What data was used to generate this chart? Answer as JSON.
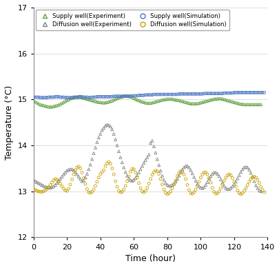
{
  "title": "",
  "xlabel": "Time (hour)",
  "ylabel": "Temperature (°C)",
  "xlim": [
    0,
    140
  ],
  "ylim": [
    12,
    17
  ],
  "yticks": [
    12,
    13,
    14,
    15,
    16,
    17
  ],
  "xticks": [
    0,
    20,
    40,
    60,
    80,
    100,
    120,
    140
  ],
  "supply_exp_color": "#5d9e3c",
  "diffusion_exp_color": "#808080",
  "supply_sim_color": "#4472c4",
  "diffusion_sim_color": "#c8a000",
  "legend_labels": [
    "Supply well(Experiment)",
    "Diffusion well(Experiment)",
    "Supply well(Simulation)",
    "Diffusion well(Simulation)"
  ],
  "supply_exp_x": [
    0,
    1,
    2,
    3,
    4,
    5,
    6,
    7,
    8,
    9,
    10,
    11,
    12,
    13,
    14,
    15,
    16,
    17,
    18,
    19,
    20,
    21,
    22,
    23,
    24,
    25,
    26,
    27,
    28,
    29,
    30,
    31,
    32,
    33,
    34,
    35,
    36,
    37,
    38,
    39,
    40,
    41,
    42,
    43,
    44,
    45,
    46,
    47,
    48,
    49,
    50,
    51,
    52,
    53,
    54,
    55,
    56,
    57,
    58,
    59,
    60,
    61,
    62,
    63,
    64,
    65,
    66,
    67,
    68,
    69,
    70,
    71,
    72,
    73,
    74,
    75,
    76,
    77,
    78,
    79,
    80,
    81,
    82,
    83,
    84,
    85,
    86,
    87,
    88,
    89,
    90,
    91,
    92,
    93,
    94,
    95,
    96,
    97,
    98,
    99,
    100,
    101,
    102,
    103,
    104,
    105,
    106,
    107,
    108,
    109,
    110,
    111,
    112,
    113,
    114,
    115,
    116,
    117,
    118,
    119,
    120,
    121,
    122,
    123,
    124,
    125,
    126,
    127,
    128,
    129,
    130,
    131,
    132,
    133,
    134,
    135,
    136
  ],
  "supply_exp_y": [
    14.97,
    14.95,
    14.93,
    14.91,
    14.89,
    14.88,
    14.87,
    14.86,
    14.85,
    14.84,
    14.84,
    14.84,
    14.85,
    14.86,
    14.87,
    14.88,
    14.9,
    14.92,
    14.94,
    14.96,
    14.98,
    15.0,
    15.02,
    15.03,
    15.04,
    15.05,
    15.05,
    15.05,
    15.05,
    15.04,
    15.03,
    15.02,
    15.01,
    15.0,
    14.99,
    14.98,
    14.97,
    14.96,
    14.95,
    14.94,
    14.94,
    14.93,
    14.93,
    14.93,
    14.94,
    14.95,
    14.96,
    14.97,
    14.99,
    15.01,
    15.02,
    15.04,
    15.05,
    15.06,
    15.07,
    15.08,
    15.08,
    15.07,
    15.06,
    15.05,
    15.03,
    15.01,
    14.99,
    14.98,
    14.96,
    14.95,
    14.94,
    14.93,
    14.92,
    14.92,
    14.92,
    14.93,
    14.94,
    14.95,
    14.96,
    14.97,
    14.98,
    14.99,
    15.0,
    15.0,
    15.01,
    15.01,
    15.01,
    15.01,
    15.0,
    14.99,
    14.99,
    14.98,
    14.97,
    14.96,
    14.95,
    14.94,
    14.93,
    14.92,
    14.91,
    14.91,
    14.91,
    14.91,
    14.91,
    14.92,
    14.93,
    14.94,
    14.95,
    14.96,
    14.97,
    14.98,
    14.99,
    15.0,
    15.01,
    15.01,
    15.02,
    15.02,
    15.02,
    15.01,
    15.0,
    14.99,
    14.98,
    14.97,
    14.96,
    14.95,
    14.94,
    14.93,
    14.92,
    14.91,
    14.9,
    14.9,
    14.89,
    14.89,
    14.89,
    14.89,
    14.89,
    14.89,
    14.89,
    14.89,
    14.89,
    14.89,
    14.89
  ],
  "diffusion_exp_x": [
    0,
    1,
    2,
    3,
    4,
    5,
    6,
    7,
    8,
    9,
    10,
    11,
    12,
    13,
    14,
    15,
    16,
    17,
    18,
    19,
    20,
    21,
    22,
    23,
    24,
    25,
    26,
    27,
    28,
    29,
    30,
    31,
    32,
    33,
    34,
    35,
    36,
    37,
    38,
    39,
    40,
    41,
    42,
    43,
    44,
    45,
    46,
    47,
    48,
    49,
    50,
    51,
    52,
    53,
    54,
    55,
    56,
    57,
    58,
    59,
    60,
    61,
    62,
    63,
    64,
    65,
    66,
    67,
    68,
    69,
    70,
    71,
    72,
    73,
    74,
    75,
    76,
    77,
    78,
    79,
    80,
    81,
    82,
    83,
    84,
    85,
    86,
    87,
    88,
    89,
    90,
    91,
    92,
    93,
    94,
    95,
    96,
    97,
    98,
    99,
    100,
    101,
    102,
    103,
    104,
    105,
    106,
    107,
    108,
    109,
    110,
    111,
    112,
    113,
    114,
    115,
    116,
    117,
    118,
    119,
    120,
    121,
    122,
    123,
    124,
    125,
    126,
    127,
    128,
    129,
    130,
    131,
    132,
    133,
    134,
    135,
    136
  ],
  "diffusion_exp_y": [
    13.25,
    13.22,
    13.2,
    13.18,
    13.16,
    13.14,
    13.12,
    13.1,
    13.09,
    13.08,
    13.08,
    13.09,
    13.11,
    13.14,
    13.18,
    13.22,
    13.27,
    13.32,
    13.37,
    13.41,
    13.45,
    13.47,
    13.48,
    13.48,
    13.46,
    13.42,
    13.37,
    13.32,
    13.27,
    13.22,
    13.24,
    13.3,
    13.38,
    13.48,
    13.58,
    13.7,
    13.83,
    13.95,
    14.07,
    14.17,
    14.25,
    14.33,
    14.38,
    14.43,
    14.45,
    14.44,
    14.41,
    14.35,
    14.25,
    14.13,
    14.0,
    13.87,
    13.74,
    13.63,
    13.52,
    13.42,
    13.34,
    13.28,
    13.24,
    13.23,
    13.25,
    13.29,
    13.35,
    13.41,
    13.48,
    13.55,
    13.62,
    13.68,
    13.74,
    13.8,
    14.05,
    14.1,
    13.98,
    13.84,
    13.7,
    13.57,
    13.45,
    13.34,
    13.25,
    13.18,
    13.14,
    13.12,
    13.12,
    13.14,
    13.17,
    13.21,
    13.27,
    13.34,
    13.41,
    13.47,
    13.52,
    13.55,
    13.55,
    13.52,
    13.46,
    13.39,
    13.31,
    13.23,
    13.16,
    13.11,
    13.08,
    13.07,
    13.09,
    13.14,
    13.2,
    13.27,
    13.33,
    13.38,
    13.41,
    13.41,
    13.38,
    13.33,
    13.26,
    13.19,
    13.12,
    13.07,
    13.05,
    13.05,
    13.07,
    13.11,
    13.15,
    13.21,
    13.28,
    13.35,
    13.42,
    13.48,
    13.52,
    13.53,
    13.52,
    13.47,
    13.4,
    13.31,
    13.22,
    13.13,
    13.07,
    13.02,
    13.0
  ],
  "supply_sim_x": [
    0,
    1,
    2,
    3,
    4,
    5,
    6,
    7,
    8,
    9,
    10,
    11,
    12,
    13,
    14,
    15,
    16,
    17,
    18,
    19,
    20,
    21,
    22,
    23,
    24,
    25,
    26,
    27,
    28,
    29,
    30,
    31,
    32,
    33,
    34,
    35,
    36,
    37,
    38,
    39,
    40,
    41,
    42,
    43,
    44,
    45,
    46,
    47,
    48,
    49,
    50,
    51,
    52,
    53,
    54,
    55,
    56,
    57,
    58,
    59,
    60,
    61,
    62,
    63,
    64,
    65,
    66,
    67,
    68,
    69,
    70,
    71,
    72,
    73,
    74,
    75,
    76,
    77,
    78,
    79,
    80,
    81,
    82,
    83,
    84,
    85,
    86,
    87,
    88,
    89,
    90,
    91,
    92,
    93,
    94,
    95,
    96,
    97,
    98,
    99,
    100,
    101,
    102,
    103,
    104,
    105,
    106,
    107,
    108,
    109,
    110,
    111,
    112,
    113,
    114,
    115,
    116,
    117,
    118,
    119,
    120,
    121,
    122,
    123,
    124,
    125,
    126,
    127,
    128,
    129,
    130,
    131,
    132,
    133,
    134,
    135,
    136,
    137,
    138
  ],
  "supply_sim_y": [
    15.05,
    15.05,
    15.05,
    15.05,
    15.04,
    15.04,
    15.04,
    15.04,
    15.04,
    15.05,
    15.05,
    15.05,
    15.05,
    15.06,
    15.06,
    15.06,
    15.05,
    15.05,
    15.05,
    15.04,
    15.04,
    15.04,
    15.04,
    15.04,
    15.05,
    15.05,
    15.05,
    15.06,
    15.06,
    15.06,
    15.05,
    15.05,
    15.05,
    15.04,
    15.04,
    15.05,
    15.05,
    15.05,
    15.06,
    15.06,
    15.06,
    15.06,
    15.06,
    15.06,
    15.06,
    15.06,
    15.06,
    15.06,
    15.07,
    15.07,
    15.07,
    15.07,
    15.07,
    15.07,
    15.07,
    15.07,
    15.07,
    15.07,
    15.07,
    15.08,
    15.08,
    15.08,
    15.08,
    15.09,
    15.09,
    15.09,
    15.09,
    15.1,
    15.1,
    15.1,
    15.1,
    15.1,
    15.11,
    15.11,
    15.11,
    15.11,
    15.11,
    15.11,
    15.11,
    15.11,
    15.11,
    15.11,
    15.11,
    15.11,
    15.11,
    15.11,
    15.11,
    15.12,
    15.12,
    15.12,
    15.12,
    15.12,
    15.12,
    15.12,
    15.12,
    15.12,
    15.12,
    15.12,
    15.12,
    15.12,
    15.12,
    15.12,
    15.13,
    15.13,
    15.13,
    15.13,
    15.13,
    15.13,
    15.13,
    15.13,
    15.13,
    15.13,
    15.13,
    15.13,
    15.14,
    15.14,
    15.14,
    15.14,
    15.14,
    15.14,
    15.15,
    15.15,
    15.15,
    15.15,
    15.15,
    15.15,
    15.15,
    15.15,
    15.15,
    15.15,
    15.15,
    15.15,
    15.15,
    15.15,
    15.15,
    15.15,
    15.15,
    15.15,
    15.15
  ],
  "diffusion_sim_x": [
    0,
    1,
    2,
    3,
    4,
    5,
    6,
    7,
    8,
    9,
    10,
    11,
    12,
    13,
    14,
    15,
    16,
    17,
    18,
    19,
    20,
    21,
    22,
    23,
    24,
    25,
    26,
    27,
    28,
    29,
    30,
    31,
    32,
    33,
    34,
    35,
    36,
    37,
    38,
    39,
    40,
    41,
    42,
    43,
    44,
    45,
    46,
    47,
    48,
    49,
    50,
    51,
    52,
    53,
    54,
    55,
    56,
    57,
    58,
    59,
    60,
    61,
    62,
    63,
    64,
    65,
    66,
    67,
    68,
    69,
    70,
    71,
    72,
    73,
    74,
    75,
    76,
    77,
    78,
    79,
    80,
    81,
    82,
    83,
    84,
    85,
    86,
    87,
    88,
    89,
    90,
    91,
    92,
    93,
    94,
    95,
    96,
    97,
    98,
    99,
    100,
    101,
    102,
    103,
    104,
    105,
    106,
    107,
    108,
    109,
    110,
    111,
    112,
    113,
    114,
    115,
    116,
    117,
    118,
    119,
    120,
    121,
    122,
    123,
    124,
    125,
    126,
    127,
    128,
    129,
    130,
    131,
    132,
    133,
    134,
    135,
    136,
    137,
    138
  ],
  "diffusion_sim_y": [
    13.05,
    13.03,
    13.01,
    13.0,
    12.99,
    12.99,
    13.0,
    13.02,
    13.05,
    13.09,
    13.14,
    13.19,
    13.24,
    13.27,
    13.26,
    13.23,
    13.17,
    13.11,
    13.06,
    13.02,
    13.01,
    13.06,
    13.15,
    13.26,
    13.37,
    13.46,
    13.52,
    13.54,
    13.5,
    13.41,
    13.29,
    13.16,
    13.05,
    12.98,
    12.97,
    12.99,
    13.04,
    13.12,
    13.21,
    13.3,
    13.38,
    13.42,
    13.46,
    13.55,
    13.61,
    13.64,
    13.6,
    13.5,
    13.37,
    13.22,
    13.1,
    13.01,
    12.98,
    12.99,
    13.04,
    13.12,
    13.22,
    13.33,
    13.43,
    13.49,
    13.48,
    13.41,
    13.3,
    13.18,
    13.07,
    13.0,
    12.98,
    13.01,
    13.08,
    13.17,
    13.27,
    13.36,
    13.42,
    13.45,
    13.44,
    13.38,
    13.27,
    13.15,
    13.04,
    12.97,
    12.94,
    12.96,
    13.0,
    13.07,
    13.15,
    13.24,
    13.33,
    13.4,
    13.44,
    13.43,
    13.37,
    13.27,
    13.14,
    13.03,
    12.96,
    12.95,
    12.98,
    13.04,
    13.12,
    13.21,
    13.3,
    13.37,
    13.41,
    13.41,
    13.37,
    13.29,
    13.19,
    13.08,
    12.99,
    12.95,
    12.96,
    13.0,
    13.07,
    13.15,
    13.23,
    13.3,
    13.35,
    13.37,
    13.35,
    13.29,
    13.21,
    13.11,
    13.02,
    12.96,
    12.94,
    12.96,
    13.01,
    13.07,
    13.14,
    13.21,
    13.27,
    13.31,
    13.32,
    13.3,
    13.25,
    13.18,
    13.1,
    13.03,
    12.98
  ]
}
